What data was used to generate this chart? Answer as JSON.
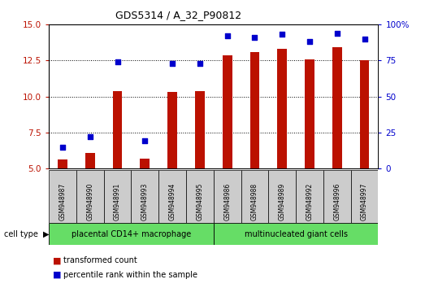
{
  "title": "GDS5314 / A_32_P90812",
  "samples": [
    "GSM948987",
    "GSM948990",
    "GSM948991",
    "GSM948993",
    "GSM948994",
    "GSM948995",
    "GSM948986",
    "GSM948988",
    "GSM948989",
    "GSM948992",
    "GSM948996",
    "GSM948997"
  ],
  "transformed_count": [
    5.6,
    6.1,
    10.4,
    5.7,
    10.3,
    10.35,
    12.85,
    13.1,
    13.3,
    12.55,
    13.4,
    12.5
  ],
  "percentile_rank": [
    15,
    22,
    74,
    19,
    73,
    73,
    92,
    91,
    93,
    88,
    94,
    90
  ],
  "group1_label": "placental CD14+ macrophage",
  "group2_label": "multinucleated giant cells",
  "group1_count": 6,
  "group2_count": 6,
  "ylim_left": [
    5,
    15
  ],
  "ylim_right": [
    0,
    100
  ],
  "yticks_left": [
    5,
    7.5,
    10,
    12.5,
    15
  ],
  "yticks_right": [
    0,
    25,
    50,
    75,
    100
  ],
  "bar_color": "#bb1100",
  "dot_color": "#0000cc",
  "bar_width": 0.35,
  "legend_bar_label": "transformed count",
  "legend_dot_label": "percentile rank within the sample",
  "cell_type_label": "cell type",
  "group_bg": "#66dd66",
  "label_bg": "#cccccc",
  "ax_bg": "white"
}
